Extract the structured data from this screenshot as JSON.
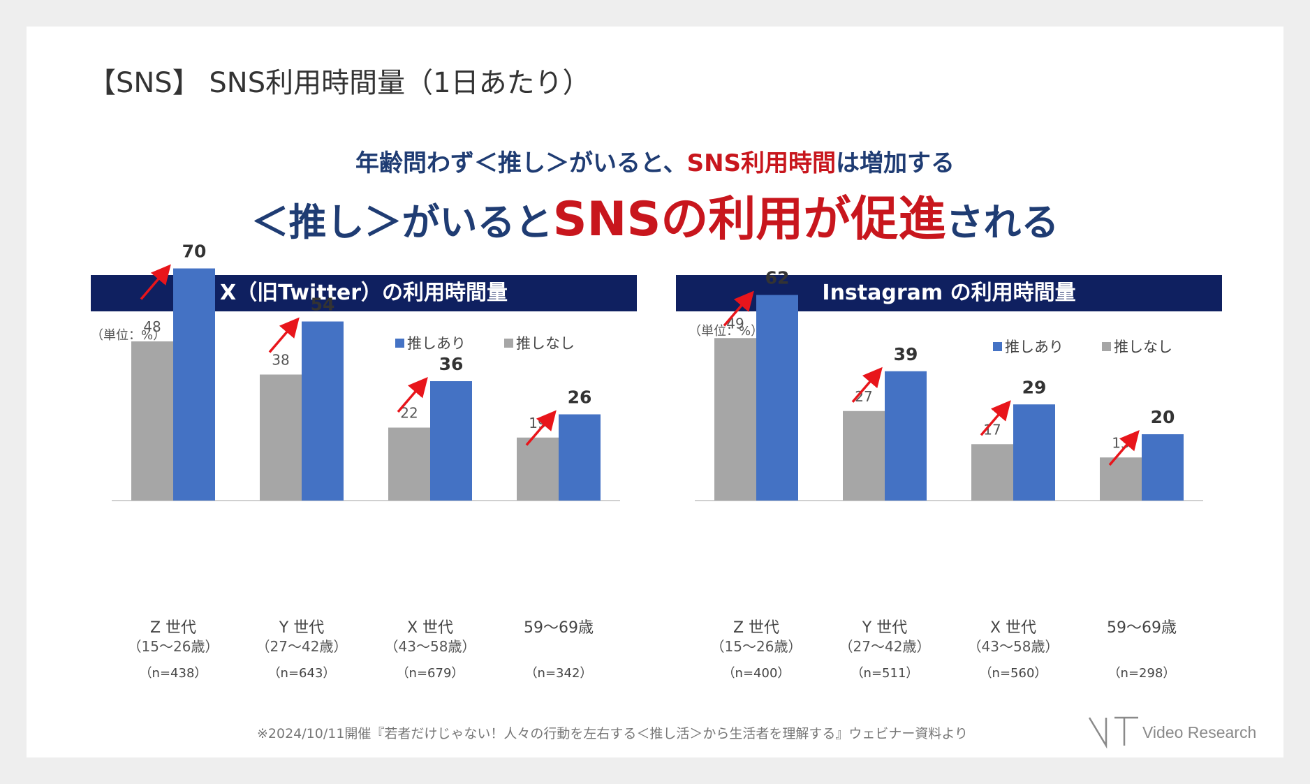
{
  "page_title": "【SNS】 SNS利用時間量（1日あたり）",
  "headline1": {
    "part1": "年齢問わず＜推し＞がいると、",
    "part2": "SNS利用時間",
    "part3": "は増加する"
  },
  "headline2": {
    "part1": "＜推し＞がいると",
    "part2": "SNSの利用が促進",
    "part3": "される"
  },
  "colors": {
    "with_oshi": "#4472c4",
    "without_oshi": "#a6a6a6",
    "header_bg": "#0f2060",
    "headline": "#1f3c73",
    "accent_red": "#c8161d",
    "arrow": "#e8151b"
  },
  "chart_data": [
    {
      "type": "bar",
      "title": "X（旧Twitter）の利用時間量",
      "unit_label": "（単位：%）",
      "categories": [
        {
          "line1": "Z 世代",
          "line2": "（15～26歳）",
          "n": "（n=438）"
        },
        {
          "line1": "Y 世代",
          "line2": "（27～42歳）",
          "n": "（n=643）"
        },
        {
          "line1": "X 世代",
          "line2": "（43～58歳）",
          "n": "（n=679）"
        },
        {
          "line1": "59～69歳",
          "line2": "",
          "n": "（n=342）"
        }
      ],
      "series": [
        {
          "name": "推しなし",
          "values": [
            48,
            38,
            22,
            19
          ]
        },
        {
          "name": "推しあり",
          "values": [
            70,
            54,
            36,
            26
          ]
        }
      ],
      "ylim": [
        0,
        75
      ],
      "grid": false,
      "legend_position": "top-right"
    },
    {
      "type": "bar",
      "title": "Instagram の利用時間量",
      "unit_label": "（単位：%）",
      "categories": [
        {
          "line1": "Z 世代",
          "line2": "（15～26歳）",
          "n": "（n=400）"
        },
        {
          "line1": "Y 世代",
          "line2": "（27～42歳）",
          "n": "（n=511）"
        },
        {
          "line1": "X 世代",
          "line2": "（43～58歳）",
          "n": "（n=560）"
        },
        {
          "line1": "59～69歳",
          "line2": "",
          "n": "（n=298）"
        }
      ],
      "series": [
        {
          "name": "推しなし",
          "values": [
            49,
            27,
            17,
            13
          ]
        },
        {
          "name": "推しあり",
          "values": [
            62,
            39,
            29,
            20
          ]
        }
      ],
      "ylim": [
        0,
        75
      ],
      "grid": false,
      "legend_position": "top-right"
    }
  ],
  "footnote": "※2024/10/11開催『若者だけじゃない！人々の行動を左右する＜推し活＞から生活者を理解する』ウェビナー資料より",
  "logo": {
    "text": "Video Research",
    "icon": "video-research-logo-icon"
  }
}
